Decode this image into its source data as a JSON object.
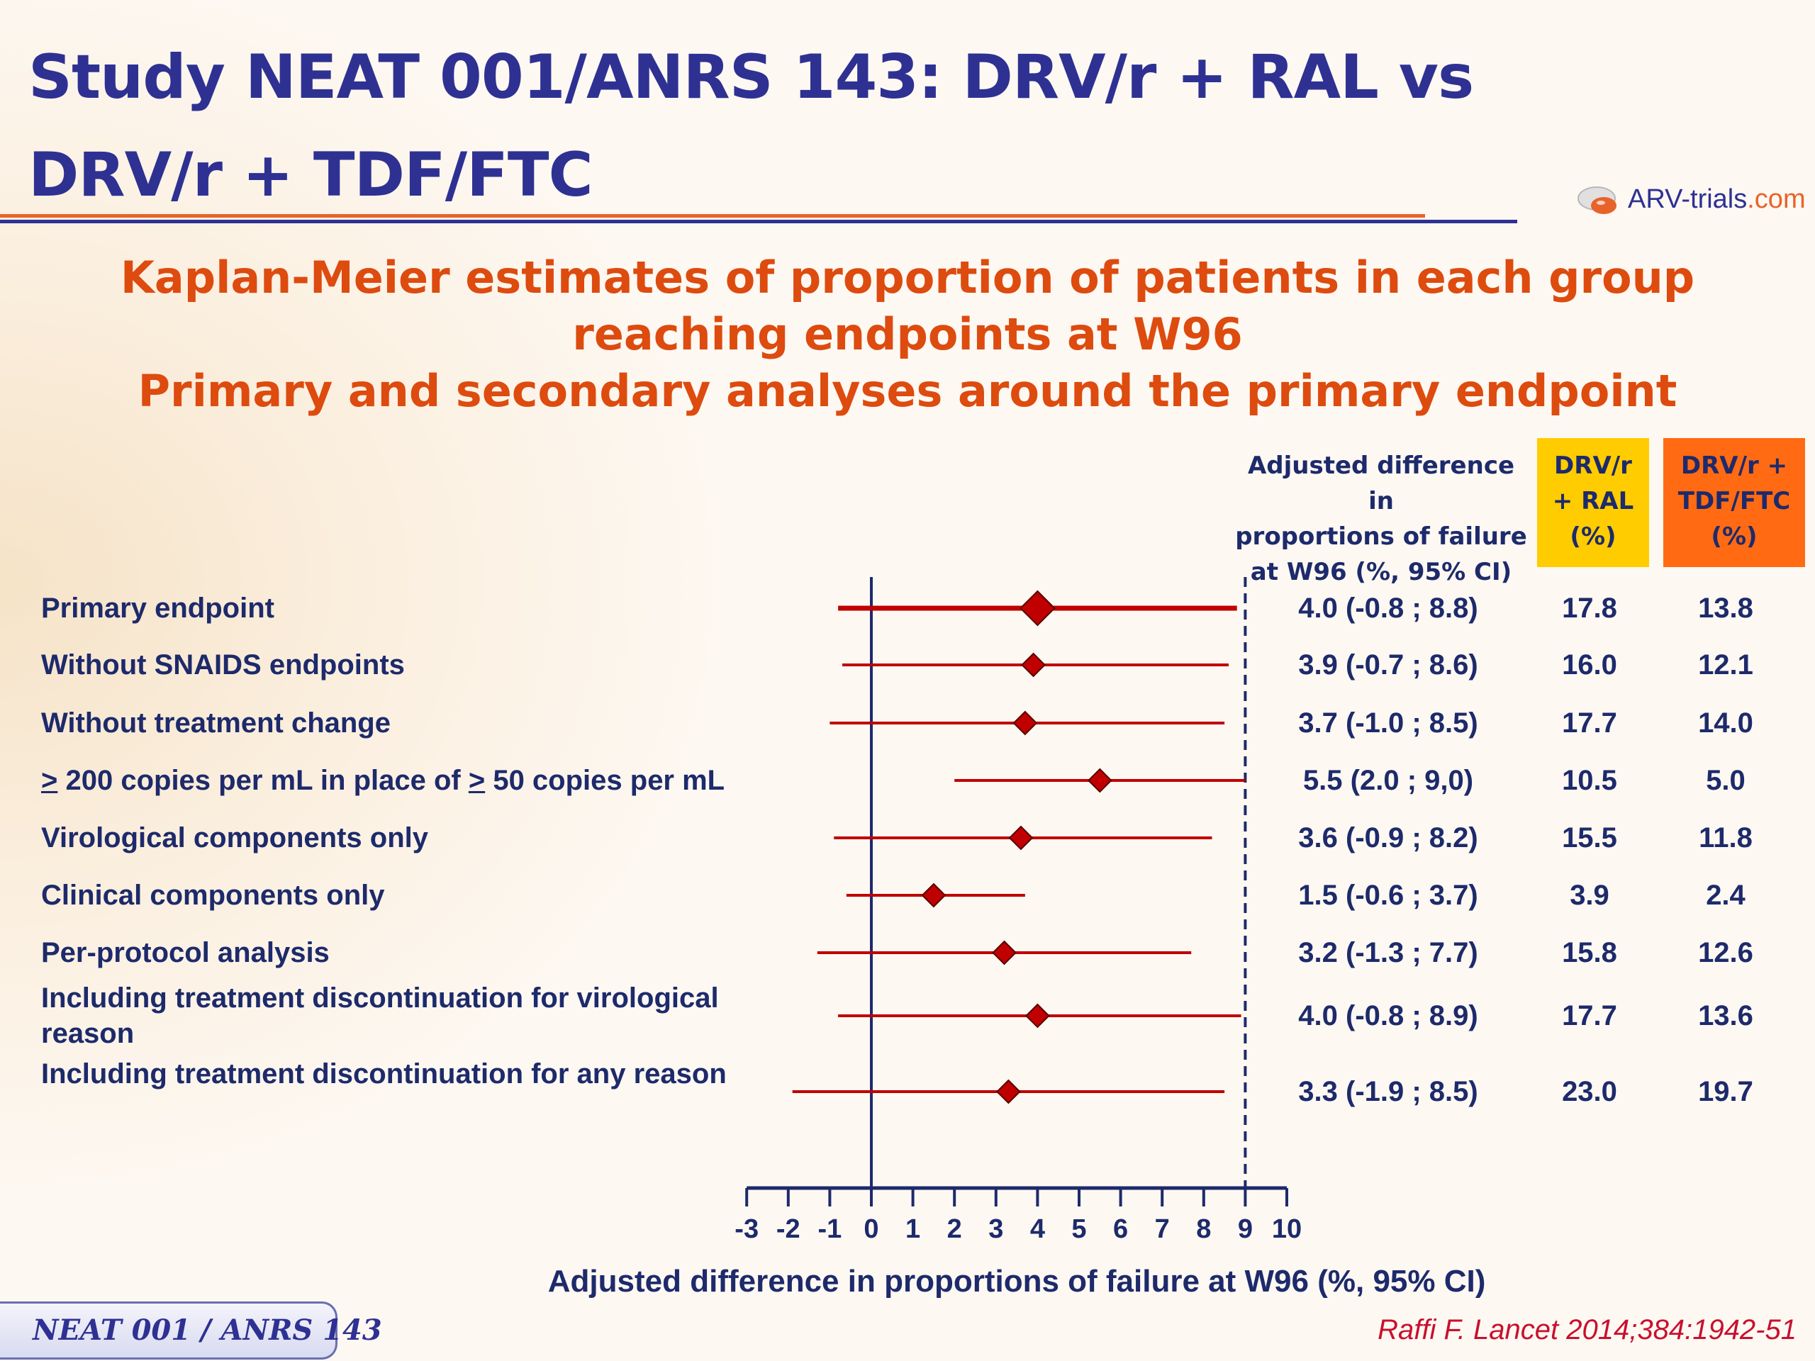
{
  "slide": {
    "title_line1": "Study NEAT 001/ANRS 143: DRV/r + RAL vs",
    "title_line2": "DRV/r + TDF/FTC",
    "subtitle_line1": "Kaplan-Meier estimates of proportion of patients in each group",
    "subtitle_line2": "reaching endpoints at W96",
    "subtitle_line3": "Primary and secondary analyses around the primary endpoint",
    "logo_text_main": "ARV-trials",
    "logo_text_dot": ".com",
    "footer_label": "NEAT 001 / ANRS 143",
    "citation": "Raffi F. Lancet 2014;384:1942-51"
  },
  "table_headers": {
    "diff": [
      "Adjusted difference in",
      "proportions of failure",
      "at W96 (%, 95% CI)"
    ],
    "ral": [
      "DRV/r",
      "+ RAL",
      "(%)"
    ],
    "tdf": [
      "DRV/r +",
      "TDF/FTC",
      "(%)"
    ]
  },
  "chart_data": {
    "type": "forest",
    "xlabel": "Adjusted difference in proportions of failure at W96 (%, 95% CI)",
    "xlim": [
      -3,
      10
    ],
    "xticks": [
      -3,
      -2,
      -1,
      0,
      1,
      2,
      3,
      4,
      5,
      6,
      7,
      8,
      9,
      10
    ],
    "reference_line": 0,
    "margin_line": 9,
    "highlight_marker_color": "#c00000",
    "line_color": "#c00000",
    "axis_color": "#1d2a6b",
    "rows": [
      {
        "label_prefix": "",
        "label": "Primary endpoint",
        "estimate": 4.0,
        "lower": -0.8,
        "upper": 8.8,
        "diff_text": "4.0 (-0.8 ; 8.8)",
        "ral": "17.8",
        "tdf": "13.8",
        "primary": true
      },
      {
        "label_prefix": "",
        "label": "Without SNAIDS endpoints",
        "estimate": 3.9,
        "lower": -0.7,
        "upper": 8.6,
        "diff_text": "3.9 (-0.7 ; 8.6)",
        "ral": "16.0",
        "tdf": "12.1",
        "primary": false
      },
      {
        "label_prefix": "",
        "label": "Without treatment change",
        "estimate": 3.7,
        "lower": -1.0,
        "upper": 8.5,
        "diff_text": "3.7 (-1.0 ; 8.5)",
        "ral": "17.7",
        "tdf": "14.0",
        "primary": false
      },
      {
        "label_prefix": ">",
        "label": " 200 copies per mL in place of ",
        "label_suffix_mark": ">",
        "label_suffix": " 50 copies per mL",
        "estimate": 5.5,
        "lower": 2.0,
        "upper": 9.0,
        "diff_text": "5.5 (2.0 ; 9,0)",
        "ral": "10.5",
        "tdf": "5.0",
        "primary": false
      },
      {
        "label_prefix": "",
        "label": "Virological components only",
        "estimate": 3.6,
        "lower": -0.9,
        "upper": 8.2,
        "diff_text": "3.6 (-0.9 ; 8.2)",
        "ral": "15.5",
        "tdf": "11.8",
        "primary": false
      },
      {
        "label_prefix": "",
        "label": "Clinical components only",
        "estimate": 1.5,
        "lower": -0.6,
        "upper": 3.7,
        "diff_text": "1.5 (-0.6 ; 3.7)",
        "ral": "3.9",
        "tdf": "2.4",
        "primary": false
      },
      {
        "label_prefix": "",
        "label": "Per-protocol analysis",
        "estimate": 3.2,
        "lower": -1.3,
        "upper": 7.7,
        "diff_text": "3.2 (-1.3 ; 7.7)",
        "ral": "15.8",
        "tdf": "12.6",
        "primary": false
      },
      {
        "label_prefix": "",
        "label": "Including treatment discontinuation for virological reason",
        "estimate": 4.0,
        "lower": -0.8,
        "upper": 8.9,
        "diff_text": "4.0 (-0.8 ; 8.9)",
        "ral": "17.7",
        "tdf": "13.6",
        "primary": false
      },
      {
        "label_prefix": "",
        "label": "Including treatment discontinuation for any reason",
        "estimate": 3.3,
        "lower": -1.9,
        "upper": 8.5,
        "diff_text": "3.3 (-1.9 ; 8.5)",
        "ral": "23.0",
        "tdf": "19.7",
        "primary": false
      }
    ]
  }
}
